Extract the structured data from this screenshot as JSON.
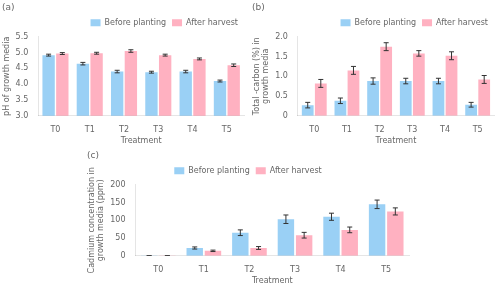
{
  "chart_data": [
    {
      "type": "bar",
      "annotation": "(a)",
      "categories": [
        "T0",
        "T1",
        "T2",
        "T3",
        "T4",
        "T5"
      ],
      "series": [
        {
          "name": "Before planting",
          "values": [
            4.92,
            4.65,
            4.4,
            4.38,
            4.4,
            4.1
          ],
          "errors": [
            0.03,
            0.04,
            0.04,
            0.03,
            0.04,
            0.03
          ]
        },
        {
          "name": "After harvest",
          "values": [
            4.97,
            4.98,
            5.05,
            4.92,
            4.8,
            4.6
          ],
          "errors": [
            0.03,
            0.03,
            0.04,
            0.03,
            0.03,
            0.04
          ]
        }
      ],
      "xlabel": "Treatment",
      "ylabel": "pH of growth media",
      "ylim": [
        3.0,
        5.5
      ],
      "yticks": [
        {
          "value": 3,
          "label": "3.0"
        },
        3.5,
        {
          "value": 4,
          "label": "4.0"
        },
        4.5,
        {
          "value": 5,
          "label": "5.0"
        },
        5.5
      ],
      "grid": false,
      "legend": "upper right"
    },
    {
      "type": "bar",
      "annotation": "(b)",
      "categories": [
        "T0",
        "T1",
        "T2",
        "T3",
        "T4",
        "T5"
      ],
      "series": [
        {
          "name": "Before planting",
          "values": [
            0.27,
            0.38,
            0.88,
            0.88,
            0.88,
            0.28
          ],
          "errors": [
            0.07,
            0.07,
            0.08,
            0.07,
            0.07,
            0.06
          ]
        },
        {
          "name": "After harvest",
          "values": [
            0.82,
            1.15,
            1.75,
            1.58,
            1.52,
            0.92
          ],
          "errors": [
            0.1,
            0.1,
            0.1,
            0.07,
            0.1,
            0.1
          ]
        }
      ],
      "xlabel": "Treatment",
      "ylabel": "Total -carbon (%) in\ngrowth media",
      "ylim": [
        0,
        2.0
      ],
      "yticks": [
        0,
        0.5,
        {
          "value": 1,
          "label": "1.0"
        },
        1.5,
        {
          "value": 2,
          "label": "2.0"
        }
      ],
      "grid": false,
      "legend": "upper right"
    },
    {
      "type": "bar",
      "annotation": "(c)",
      "categories": [
        "T0",
        "T1",
        "T2",
        "T3",
        "T4",
        "T5"
      ],
      "series": [
        {
          "name": "Before planting",
          "values": [
            0.5,
            22,
            65,
            103,
            110,
            145
          ],
          "errors": [
            0.2,
            3,
            8,
            12,
            10,
            12
          ]
        },
        {
          "name": "After harvest",
          "values": [
            0.5,
            14,
            22,
            58,
            73,
            125
          ],
          "errors": [
            0.2,
            2,
            4,
            8,
            8,
            10
          ]
        }
      ],
      "xlabel": "Treatment",
      "ylabel": "Cadmium concentration in\ngrowth media (ppm)",
      "ylim": [
        0,
        200
      ],
      "yticks": [
        0,
        50,
        100,
        150,
        200
      ],
      "grid": false,
      "legend": "upper center"
    }
  ]
}
